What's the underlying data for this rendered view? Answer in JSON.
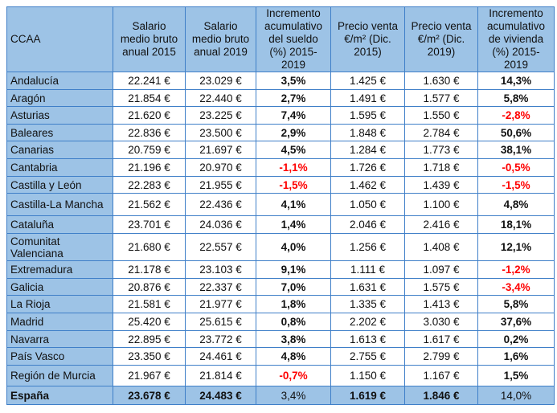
{
  "colors": {
    "header_bg": "#9dc3e6",
    "border": "#3f7fc8",
    "negative": "#ff0000"
  },
  "headers": [
    "CCAA",
    "Salario medio bruto anual 2015",
    "Salario medio bruto anual 2019",
    "Incremento acumulativo del sueldo (%)  2015-2019",
    "Precio venta €/m² (Dic. 2015)",
    "Precio venta €/m² (Dic. 2019)",
    "Incremento acumulativo de vivienda (%) 2015-2019"
  ],
  "rows": [
    [
      "Andalucía",
      "22.241 €",
      "23.029 €",
      "3,5%",
      "1.425 €",
      "1.630 €",
      "14,3%"
    ],
    [
      "Aragón",
      "21.854 €",
      "22.440 €",
      "2,7%",
      "1.491 €",
      "1.577 €",
      "5,8%"
    ],
    [
      "Asturias",
      "21.620 €",
      "23.225 €",
      "7,4%",
      "1.595 €",
      "1.550 €",
      "-2,8%"
    ],
    [
      "Baleares",
      "22.836 €",
      "23.500 €",
      "2,9%",
      "1.848 €",
      "2.784 €",
      "50,6%"
    ],
    [
      "Canarias",
      "20.759 €",
      "21.697 €",
      "4,5%",
      "1.284 €",
      "1.773 €",
      "38,1%"
    ],
    [
      "Cantabria",
      "21.196 €",
      "20.970 €",
      "-1,1%",
      "1.726 €",
      "1.718 €",
      "-0,5%"
    ],
    [
      "Castilla y León",
      "22.283 €",
      "21.955 €",
      "-1,5%",
      "1.462 €",
      "1.439 €",
      "-1,5%"
    ],
    [
      "Castilla-La Mancha",
      "21.562 €",
      "22.436 €",
      "4,1%",
      "1.050 €",
      "1.100 €",
      "4,8%"
    ],
    [
      "Cataluña",
      "23.701 €",
      "24.036 €",
      "1,4%",
      "2.046 €",
      "2.416 €",
      "18,1%"
    ],
    [
      "Comunitat Valenciana",
      "21.680 €",
      "22.557 €",
      "4,0%",
      "1.256 €",
      "1.408 €",
      "12,1%"
    ],
    [
      "Extremadura",
      "21.178 €",
      "23.103 €",
      "9,1%",
      "1.111 €",
      "1.097 €",
      "-1,2%"
    ],
    [
      "Galicia",
      "20.876 €",
      "22.337 €",
      "7,0%",
      "1.631 €",
      "1.575 €",
      "-3,4%"
    ],
    [
      "La Rioja",
      "21.581 €",
      "21.977 €",
      "1,8%",
      "1.335 €",
      "1.413 €",
      "5,8%"
    ],
    [
      "Madrid",
      "25.420 €",
      "25.615 €",
      "0,8%",
      "2.202 €",
      "3.030 €",
      "37,6%"
    ],
    [
      "Navarra",
      "22.895 €",
      "23.772 €",
      "3,8%",
      "1.613 €",
      "1.617 €",
      "0,2%"
    ],
    [
      "País Vasco",
      "23.350 €",
      "24.461 €",
      "4,8%",
      "2.755 €",
      "2.799 €",
      "1,6%"
    ],
    [
      "Región de Murcia",
      "21.967 €",
      "21.814 €",
      "-0,7%",
      "1.150 €",
      "1.167 €",
      "1,5%"
    ]
  ],
  "total": [
    "España",
    "23.678 €",
    "24.483 €",
    "3,4%",
    "1.619 €",
    "1.846 €",
    "14,0%"
  ]
}
